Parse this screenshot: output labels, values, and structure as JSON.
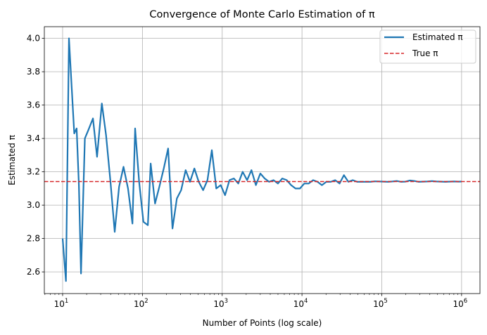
{
  "chart_data": {
    "type": "line",
    "title": "Convergence of Monte Carlo Estimation of π",
    "xlabel": "Number of Points (log scale)",
    "ylabel": "Estimated π",
    "xscale": "log",
    "xlim": [
      5.9,
      1700000
    ],
    "ylim": [
      2.47,
      4.07
    ],
    "grid": true,
    "legend_position": "top-right",
    "x_ticks": [
      {
        "value": 10,
        "base": "10",
        "exp": "1"
      },
      {
        "value": 100,
        "base": "10",
        "exp": "2"
      },
      {
        "value": 1000,
        "base": "10",
        "exp": "3"
      },
      {
        "value": 10000,
        "base": "10",
        "exp": "4"
      },
      {
        "value": 100000,
        "base": "10",
        "exp": "5"
      },
      {
        "value": 1000000,
        "base": "10",
        "exp": "6"
      }
    ],
    "y_ticks": [
      {
        "value": 2.6,
        "label": "2.6"
      },
      {
        "value": 2.8,
        "label": "2.8"
      },
      {
        "value": 3.0,
        "label": "3.0"
      },
      {
        "value": 3.2,
        "label": "3.2"
      },
      {
        "value": 3.4,
        "label": "3.4"
      },
      {
        "value": 3.6,
        "label": "3.6"
      },
      {
        "value": 3.8,
        "label": "3.8"
      },
      {
        "value": 4.0,
        "label": "4.0"
      }
    ],
    "series": [
      {
        "name": "Estimated π",
        "color": "#1f77b4",
        "style": "solid",
        "x": [
          10,
          11,
          12,
          14,
          15,
          16,
          17,
          19,
          21,
          24,
          27,
          31,
          35,
          40,
          45,
          51,
          58,
          66,
          75,
          81,
          91,
          103,
          117,
          127,
          144,
          163,
          185,
          210,
          238,
          270,
          306,
          348,
          395,
          448,
          508,
          576,
          654,
          742,
          843,
          957,
          1086,
          1233,
          1400,
          1590,
          1805,
          2050,
          2328,
          2643,
          3002,
          3408,
          3870,
          4394,
          4989,
          5665,
          6433,
          7305,
          8294,
          9418,
          10694,
          12142,
          13787,
          15655,
          17776,
          20184,
          22918,
          26023,
          29549,
          33553,
          38099,
          43260,
          49121,
          55776,
          63333,
          71913,
          81656,
          92719,
          105281,
          119545,
          135742,
          154132,
          175013,
          198725,
          225648,
          256219,
          290932,
          330347,
          375102,
          425922,
          483627,
          549149,
          623549,
          708030,
          803954,
          912875,
          1000000
        ],
        "y": [
          2.8,
          2.545,
          4.0,
          3.43,
          3.46,
          3.12,
          2.59,
          3.4,
          3.45,
          3.52,
          3.29,
          3.61,
          3.42,
          3.13,
          2.84,
          3.11,
          3.23,
          3.1,
          2.89,
          3.46,
          3.14,
          2.9,
          2.88,
          3.25,
          3.01,
          3.11,
          3.22,
          3.34,
          2.86,
          3.04,
          3.09,
          3.21,
          3.14,
          3.22,
          3.14,
          3.09,
          3.15,
          3.33,
          3.1,
          3.12,
          3.06,
          3.15,
          3.16,
          3.13,
          3.2,
          3.15,
          3.21,
          3.12,
          3.19,
          3.16,
          3.14,
          3.15,
          3.13,
          3.16,
          3.15,
          3.12,
          3.1,
          3.1,
          3.13,
          3.13,
          3.15,
          3.14,
          3.12,
          3.14,
          3.14,
          3.15,
          3.13,
          3.18,
          3.14,
          3.15,
          3.14,
          3.14,
          3.14,
          3.14,
          3.143,
          3.142,
          3.141,
          3.14,
          3.142,
          3.145,
          3.14,
          3.141,
          3.148,
          3.145,
          3.14,
          3.141,
          3.142,
          3.144,
          3.142,
          3.141,
          3.14,
          3.141,
          3.142,
          3.141,
          3.1416
        ]
      },
      {
        "name": "True π",
        "color": "#d62728",
        "style": "dashed",
        "y_constant": 3.14159
      }
    ]
  }
}
